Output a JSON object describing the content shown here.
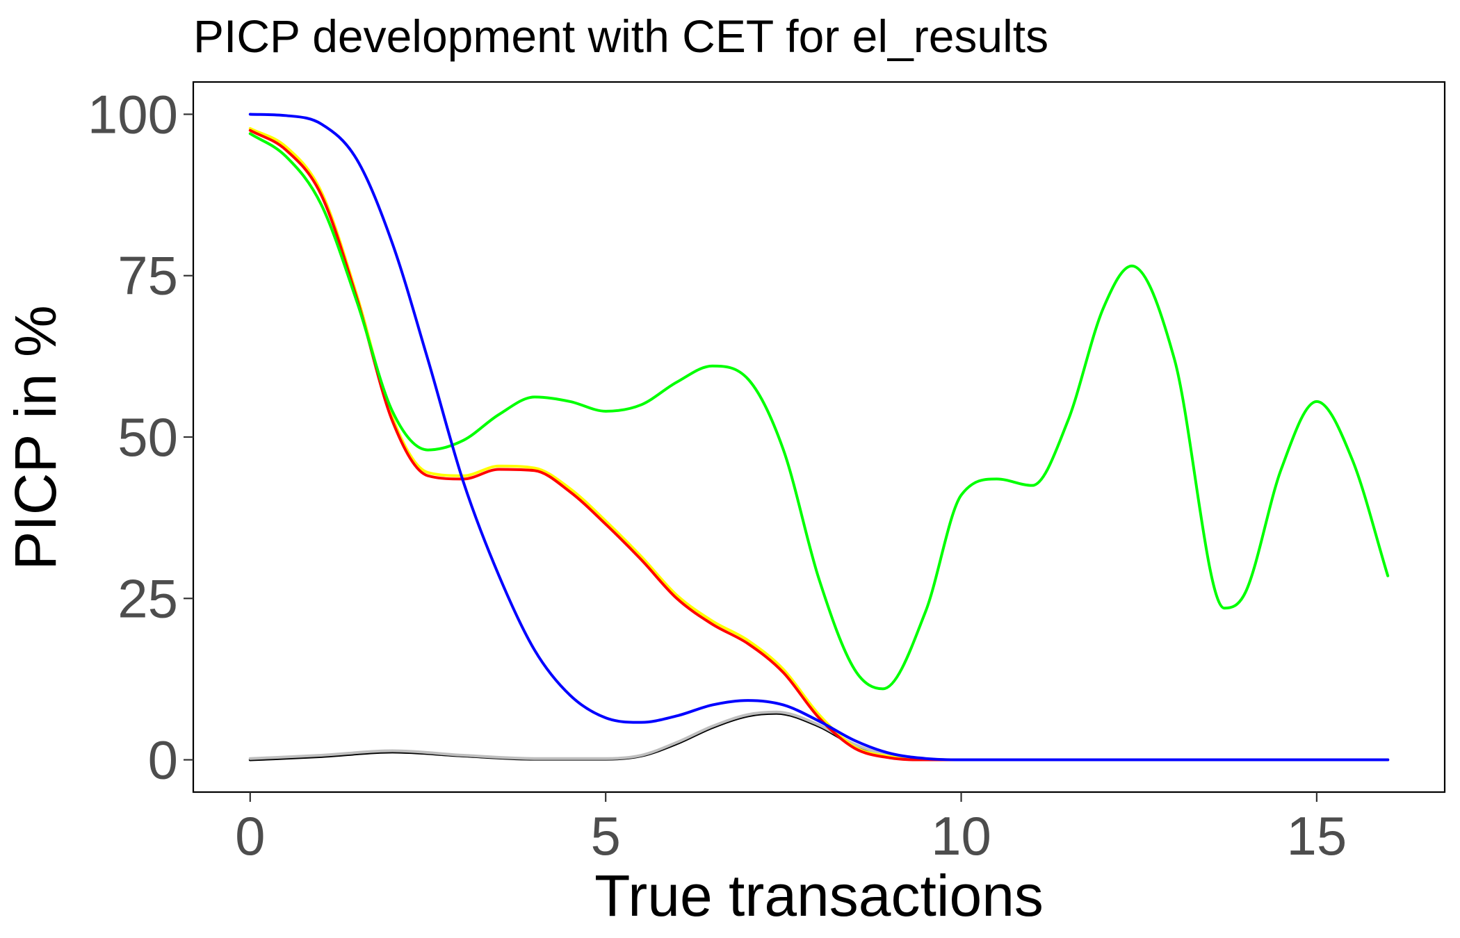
{
  "chart_data": {
    "type": "line",
    "title": "PICP development with CET for el_results",
    "xlabel": "True transactions",
    "ylabel": "PICP in %",
    "xlim": [
      -0.8,
      16.8
    ],
    "ylim": [
      -5,
      105
    ],
    "xticks": [
      0,
      5,
      10,
      15
    ],
    "yticks": [
      0,
      25,
      50,
      75,
      100
    ],
    "grid": false,
    "legend": "none",
    "series": [
      {
        "color": "#000000",
        "x": [
          0,
          1,
          2,
          3,
          4,
          5,
          5.5,
          6,
          6.5,
          7,
          7.4,
          8,
          8.5,
          9,
          10,
          12,
          14,
          16
        ],
        "y": [
          0,
          0.5,
          1.2,
          0.6,
          0.1,
          0.1,
          0.6,
          2.5,
          5,
          6.8,
          7.2,
          5.2,
          2.2,
          0.6,
          0,
          0,
          0,
          0
        ]
      },
      {
        "color": "#bebebe",
        "x": [
          0,
          1,
          2,
          3,
          4,
          5,
          5.5,
          6,
          6.5,
          7,
          7.4,
          8,
          8.5,
          9,
          10,
          12,
          14,
          16
        ],
        "y": [
          0.2,
          0.7,
          1.4,
          0.7,
          0.2,
          0.2,
          0.7,
          2.7,
          5.2,
          7,
          7.4,
          5.4,
          2.4,
          0.7,
          0,
          0,
          0,
          0
        ]
      },
      {
        "color": "#ffff00",
        "x": [
          0,
          0.5,
          1,
          1.5,
          2,
          2.5,
          3,
          3.5,
          4,
          4.5,
          5,
          5.5,
          6,
          6.5,
          7,
          7.5,
          8,
          8.5,
          9,
          9.5,
          10,
          12,
          14,
          16
        ],
        "y": [
          97.8,
          95,
          88,
          72,
          53,
          44.5,
          44,
          45.5,
          45.2,
          42,
          37,
          31.5,
          25.5,
          21.5,
          18.5,
          14,
          7,
          2,
          0.5,
          0,
          0,
          0,
          0,
          0
        ]
      },
      {
        "color": "#ff0000",
        "x": [
          0,
          0.5,
          1,
          1.5,
          2,
          2.5,
          3,
          3.5,
          4,
          4.5,
          5,
          5.5,
          6,
          6.5,
          7,
          7.5,
          8,
          8.5,
          9,
          9.5,
          10,
          12,
          14,
          16
        ],
        "y": [
          97.5,
          94.5,
          87.5,
          71.5,
          52.5,
          44,
          43.5,
          45,
          44.8,
          41.5,
          36.5,
          31,
          25,
          21,
          18,
          13.5,
          6.5,
          1.8,
          0.3,
          0,
          0,
          0,
          0,
          0
        ]
      },
      {
        "color": "#00ff00",
        "x": [
          0,
          0.5,
          1,
          1.5,
          2,
          2.5,
          3,
          3.5,
          4,
          4.5,
          5,
          5.5,
          6,
          6.5,
          7,
          7.5,
          8,
          8.5,
          8.9,
          9.5,
          10,
          10.5,
          11,
          11.5,
          12,
          12.4,
          13,
          13.7,
          14,
          14.5,
          15,
          15.5,
          16
        ],
        "y": [
          97,
          93.5,
          86,
          71,
          54,
          48,
          49.5,
          53.5,
          56.2,
          55.5,
          54,
          55,
          58.5,
          61,
          59,
          48,
          28,
          14,
          11,
          23,
          41,
          43.5,
          42.5,
          52.5,
          70,
          76.5,
          62,
          23.5,
          26,
          45,
          55.5,
          46.5,
          28.5
        ]
      },
      {
        "color": "#0000ff",
        "x": [
          0,
          0.5,
          1,
          1.5,
          2,
          2.5,
          3,
          3.5,
          4,
          4.5,
          5,
          5.5,
          6,
          6.5,
          7,
          7.5,
          8,
          8.5,
          9,
          9.5,
          10,
          12,
          14,
          16
        ],
        "y": [
          100,
          99.8,
          98.5,
          93,
          80,
          62,
          43,
          28.5,
          17,
          10,
          6.5,
          5.8,
          6.8,
          8.5,
          9.2,
          8.5,
          6,
          3,
          1,
          0.2,
          0,
          0,
          0,
          0
        ]
      }
    ]
  }
}
